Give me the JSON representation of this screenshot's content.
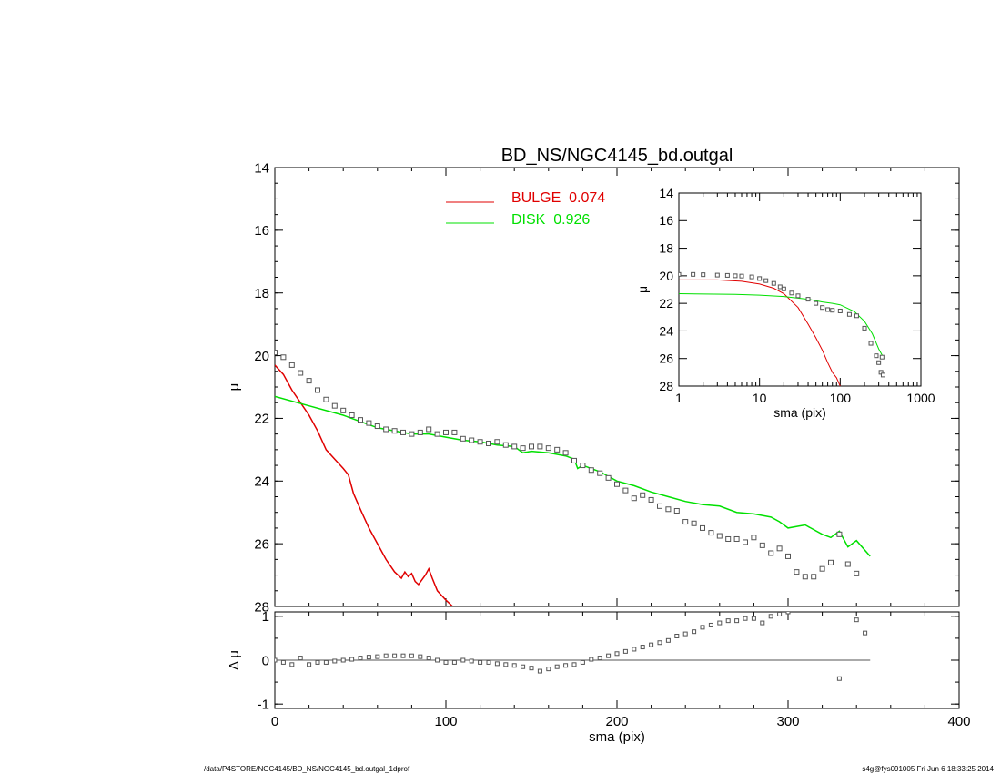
{
  "title": "BD_NS/NGC4145_bd.outgal",
  "footer": {
    "left": "/data/P4STORE/NGC4145/BD_NS/NGC4145_bd.outgal_1dprof",
    "right": "s4g@fys091005  Fri Jun  6 18:33:25 2014"
  },
  "colors": {
    "bulge": "#e00000",
    "disk": "#00e000",
    "data": "#000000",
    "points": "#555555"
  },
  "chart_data": [
    {
      "type": "line",
      "name": "main-profile",
      "title": "BD_NS/NGC4145_bd.outgal",
      "xlabel": "",
      "ylabel": "μ",
      "xlim": [
        0,
        400
      ],
      "ylim": [
        28,
        14
      ],
      "x_ticks": [
        0,
        100,
        200,
        300,
        400
      ],
      "y_ticks": [
        14,
        16,
        18,
        20,
        22,
        24,
        26,
        28
      ],
      "legend": {
        "position": "top-center",
        "entries": [
          {
            "label": "BULGE  0.074",
            "color": "#e00000"
          },
          {
            "label": "DISK  0.926",
            "color": "#00e000"
          }
        ]
      },
      "series": [
        {
          "name": "BULGE  0.074",
          "color": "#e00000",
          "points": [
            [
              0,
              20.3
            ],
            [
              5,
              20.6
            ],
            [
              10,
              21.1
            ],
            [
              15,
              21.5
            ],
            [
              20,
              21.9
            ],
            [
              25,
              22.4
            ],
            [
              30,
              23.0
            ],
            [
              35,
              23.3
            ],
            [
              40,
              23.6
            ],
            [
              43,
              23.8
            ],
            [
              46,
              24.4
            ],
            [
              50,
              24.9
            ],
            [
              55,
              25.5
            ],
            [
              60,
              26.0
            ],
            [
              65,
              26.5
            ],
            [
              70,
              26.9
            ],
            [
              74,
              27.1
            ],
            [
              76,
              26.9
            ],
            [
              78,
              27.05
            ],
            [
              80,
              26.95
            ],
            [
              82,
              27.2
            ],
            [
              84,
              27.3
            ],
            [
              86,
              27.15
            ],
            [
              88,
              27.0
            ],
            [
              90,
              26.8
            ],
            [
              92,
              27.1
            ],
            [
              95,
              27.5
            ],
            [
              100,
              27.8
            ],
            [
              104,
              28.0
            ]
          ]
        },
        {
          "name": "DISK  0.926",
          "color": "#00e000",
          "points": [
            [
              0,
              21.3
            ],
            [
              20,
              21.6
            ],
            [
              40,
              21.9
            ],
            [
              60,
              22.3
            ],
            [
              70,
              22.4
            ],
            [
              80,
              22.5
            ],
            [
              90,
              22.5
            ],
            [
              100,
              22.6
            ],
            [
              110,
              22.7
            ],
            [
              120,
              22.75
            ],
            [
              130,
              22.85
            ],
            [
              140,
              22.9
            ],
            [
              145,
              23.1
            ],
            [
              150,
              23.05
            ],
            [
              160,
              23.1
            ],
            [
              170,
              23.2
            ],
            [
              175,
              23.3
            ],
            [
              177,
              23.6
            ],
            [
              180,
              23.5
            ],
            [
              190,
              23.7
            ],
            [
              200,
              24.0
            ],
            [
              210,
              24.15
            ],
            [
              220,
              24.35
            ],
            [
              230,
              24.5
            ],
            [
              240,
              24.65
            ],
            [
              250,
              24.75
            ],
            [
              260,
              24.8
            ],
            [
              270,
              25.0
            ],
            [
              280,
              25.05
            ],
            [
              290,
              25.15
            ],
            [
              295,
              25.3
            ],
            [
              300,
              25.5
            ],
            [
              310,
              25.4
            ],
            [
              320,
              25.7
            ],
            [
              325,
              25.8
            ],
            [
              330,
              25.6
            ],
            [
              335,
              26.1
            ],
            [
              340,
              25.9
            ],
            [
              348,
              26.4
            ]
          ]
        },
        {
          "name": "data",
          "color": "#555555",
          "points": [
            [
              0,
              19.9
            ],
            [
              5,
              20.05
            ],
            [
              10,
              20.3
            ],
            [
              15,
              20.55
            ],
            [
              20,
              20.8
            ],
            [
              25,
              21.1
            ],
            [
              30,
              21.4
            ],
            [
              35,
              21.6
            ],
            [
              40,
              21.75
            ],
            [
              45,
              21.9
            ],
            [
              50,
              22.05
            ],
            [
              55,
              22.15
            ],
            [
              60,
              22.25
            ],
            [
              65,
              22.35
            ],
            [
              70,
              22.4
            ],
            [
              75,
              22.45
            ],
            [
              80,
              22.5
            ],
            [
              85,
              22.45
            ],
            [
              90,
              22.35
            ],
            [
              95,
              22.5
            ],
            [
              100,
              22.45
            ],
            [
              105,
              22.45
            ],
            [
              110,
              22.65
            ],
            [
              115,
              22.7
            ],
            [
              120,
              22.75
            ],
            [
              125,
              22.8
            ],
            [
              130,
              22.75
            ],
            [
              135,
              22.85
            ],
            [
              140,
              22.9
            ],
            [
              145,
              22.95
            ],
            [
              150,
              22.9
            ],
            [
              155,
              22.9
            ],
            [
              160,
              22.95
            ],
            [
              165,
              23.0
            ],
            [
              170,
              23.1
            ],
            [
              175,
              23.35
            ],
            [
              180,
              23.5
            ],
            [
              185,
              23.65
            ],
            [
              190,
              23.75
            ],
            [
              195,
              23.9
            ],
            [
              200,
              24.1
            ],
            [
              205,
              24.3
            ],
            [
              210,
              24.55
            ],
            [
              215,
              24.45
            ],
            [
              220,
              24.6
            ],
            [
              225,
              24.8
            ],
            [
              230,
              24.9
            ],
            [
              235,
              24.95
            ],
            [
              240,
              25.3
            ],
            [
              245,
              25.35
            ],
            [
              250,
              25.5
            ],
            [
              255,
              25.65
            ],
            [
              260,
              25.75
            ],
            [
              265,
              25.85
            ],
            [
              270,
              25.85
            ],
            [
              275,
              25.95
            ],
            [
              280,
              25.8
            ],
            [
              285,
              26.05
            ],
            [
              290,
              26.3
            ],
            [
              295,
              26.15
            ],
            [
              300,
              26.4
            ],
            [
              305,
              26.9
            ],
            [
              310,
              27.05
            ],
            [
              315,
              27.05
            ],
            [
              320,
              26.8
            ],
            [
              325,
              26.6
            ],
            [
              330,
              25.7
            ],
            [
              335,
              26.65
            ],
            [
              340,
              26.95
            ]
          ]
        }
      ]
    },
    {
      "type": "scatter",
      "name": "residuals",
      "xlabel": "sma (pix)",
      "ylabel": "Δ μ",
      "xlim": [
        0,
        400
      ],
      "ylim": [
        -1.1,
        1.1
      ],
      "x_ticks": [
        0,
        100,
        200,
        300,
        400
      ],
      "y_ticks": [
        -1,
        0,
        1
      ],
      "zero_line_to": 348,
      "series": [
        {
          "name": "residual",
          "color": "#555555",
          "points": [
            [
              0,
              0.0
            ],
            [
              5,
              -0.05
            ],
            [
              10,
              -0.1
            ],
            [
              15,
              0.05
            ],
            [
              20,
              -0.1
            ],
            [
              25,
              -0.05
            ],
            [
              30,
              -0.05
            ],
            [
              35,
              -0.02
            ],
            [
              40,
              0.0
            ],
            [
              45,
              0.02
            ],
            [
              50,
              0.05
            ],
            [
              55,
              0.07
            ],
            [
              60,
              0.08
            ],
            [
              65,
              0.1
            ],
            [
              70,
              0.1
            ],
            [
              75,
              0.1
            ],
            [
              80,
              0.1
            ],
            [
              85,
              0.08
            ],
            [
              90,
              0.05
            ],
            [
              95,
              0.0
            ],
            [
              100,
              -0.05
            ],
            [
              105,
              -0.05
            ],
            [
              110,
              0.0
            ],
            [
              115,
              -0.02
            ],
            [
              120,
              -0.05
            ],
            [
              125,
              -0.05
            ],
            [
              130,
              -0.08
            ],
            [
              135,
              -0.1
            ],
            [
              140,
              -0.12
            ],
            [
              145,
              -0.15
            ],
            [
              150,
              -0.18
            ],
            [
              155,
              -0.25
            ],
            [
              160,
              -0.2
            ],
            [
              165,
              -0.15
            ],
            [
              170,
              -0.12
            ],
            [
              175,
              -0.1
            ],
            [
              180,
              -0.05
            ],
            [
              185,
              0.02
            ],
            [
              190,
              0.05
            ],
            [
              195,
              0.1
            ],
            [
              200,
              0.15
            ],
            [
              205,
              0.2
            ],
            [
              210,
              0.25
            ],
            [
              215,
              0.3
            ],
            [
              220,
              0.35
            ],
            [
              225,
              0.4
            ],
            [
              230,
              0.45
            ],
            [
              235,
              0.55
            ],
            [
              240,
              0.6
            ],
            [
              245,
              0.65
            ],
            [
              250,
              0.75
            ],
            [
              255,
              0.8
            ],
            [
              260,
              0.85
            ],
            [
              265,
              0.9
            ],
            [
              270,
              0.9
            ],
            [
              275,
              0.95
            ],
            [
              280,
              0.95
            ],
            [
              285,
              0.85
            ],
            [
              290,
              1.0
            ],
            [
              295,
              1.05
            ],
            [
              300,
              1.1
            ],
            [
              330,
              -0.42
            ],
            [
              340,
              0.92
            ],
            [
              345,
              0.62
            ]
          ]
        }
      ]
    },
    {
      "type": "line",
      "name": "inset-log-profile",
      "xlabel": "sma (pix)",
      "ylabel": "μ",
      "x_scale": "log",
      "xlim": [
        1,
        1000
      ],
      "ylim": [
        28,
        14
      ],
      "x_ticks": [
        1,
        10,
        100,
        1000
      ],
      "y_ticks": [
        14,
        16,
        18,
        20,
        22,
        24,
        26,
        28
      ],
      "series": [
        {
          "name": "BULGE",
          "color": "#e00000",
          "points": [
            [
              1,
              20.3
            ],
            [
              3,
              20.3
            ],
            [
              6,
              20.4
            ],
            [
              10,
              20.6
            ],
            [
              15,
              20.9
            ],
            [
              20,
              21.3
            ],
            [
              30,
              22.3
            ],
            [
              40,
              23.5
            ],
            [
              50,
              24.5
            ],
            [
              60,
              25.4
            ],
            [
              70,
              26.3
            ],
            [
              80,
              27.0
            ],
            [
              90,
              27.4
            ],
            [
              100,
              28.0
            ]
          ]
        },
        {
          "name": "DISK",
          "color": "#00e000",
          "points": [
            [
              1,
              21.3
            ],
            [
              5,
              21.35
            ],
            [
              10,
              21.4
            ],
            [
              20,
              21.5
            ],
            [
              40,
              21.7
            ],
            [
              60,
              21.9
            ],
            [
              80,
              22.0
            ],
            [
              100,
              22.1
            ],
            [
              150,
              22.6
            ],
            [
              200,
              23.3
            ],
            [
              250,
              24.2
            ],
            [
              300,
              25.3
            ],
            [
              348,
              26.0
            ]
          ]
        },
        {
          "name": "data",
          "color": "#555555",
          "points": [
            [
              1,
              19.9
            ],
            [
              1.5,
              19.9
            ],
            [
              2,
              19.92
            ],
            [
              3,
              19.95
            ],
            [
              4,
              19.97
            ],
            [
              5,
              20.0
            ],
            [
              6,
              20.02
            ],
            [
              8,
              20.08
            ],
            [
              10,
              20.2
            ],
            [
              12,
              20.35
            ],
            [
              15,
              20.55
            ],
            [
              18,
              20.8
            ],
            [
              20,
              20.95
            ],
            [
              25,
              21.25
            ],
            [
              30,
              21.45
            ],
            [
              40,
              21.7
            ],
            [
              50,
              22.0
            ],
            [
              60,
              22.3
            ],
            [
              70,
              22.45
            ],
            [
              80,
              22.5
            ],
            [
              100,
              22.55
            ],
            [
              130,
              22.8
            ],
            [
              160,
              22.9
            ],
            [
              200,
              23.8
            ],
            [
              240,
              24.9
            ],
            [
              280,
              25.8
            ],
            [
              300,
              26.3
            ],
            [
              320,
              27.0
            ],
            [
              330,
              25.9
            ],
            [
              340,
              27.2
            ]
          ]
        }
      ]
    }
  ]
}
